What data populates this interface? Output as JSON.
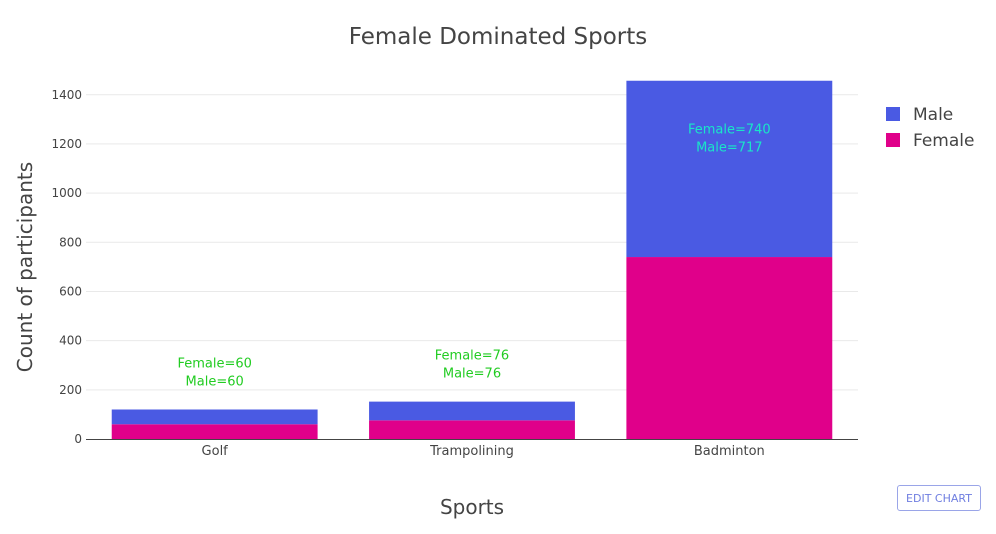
{
  "chart_data": {
    "type": "bar",
    "stacked": true,
    "title": "Female Dominated Sports",
    "xlabel": "Sports",
    "ylabel": "Count of participants",
    "categories": [
      "Golf",
      "Trampolining",
      "Badminton"
    ],
    "series": [
      {
        "name": "Female",
        "values": [
          60,
          76,
          740
        ],
        "color": "#e0008a"
      },
      {
        "name": "Male",
        "values": [
          60,
          76,
          717
        ],
        "color": "#4a5ae3"
      }
    ],
    "legend_order": [
      "Male",
      "Female"
    ],
    "legend_position": "right",
    "ylim": [
      0,
      1460
    ],
    "yticks": [
      0,
      200,
      400,
      600,
      800,
      1000,
      1200,
      1400
    ],
    "grid": true,
    "annotations": [
      {
        "category": "Golf",
        "lines": [
          "Female=60",
          "Male=60"
        ],
        "color": "#22cc22"
      },
      {
        "category": "Trampolining",
        "lines": [
          "Female=76",
          "Male=76"
        ],
        "color": "#22cc22"
      },
      {
        "category": "Badminton",
        "lines": [
          "Female=740",
          "Male=717"
        ],
        "color": "#19e6c8"
      }
    ]
  },
  "ui": {
    "edit_chart_label": "EDIT CHART"
  }
}
